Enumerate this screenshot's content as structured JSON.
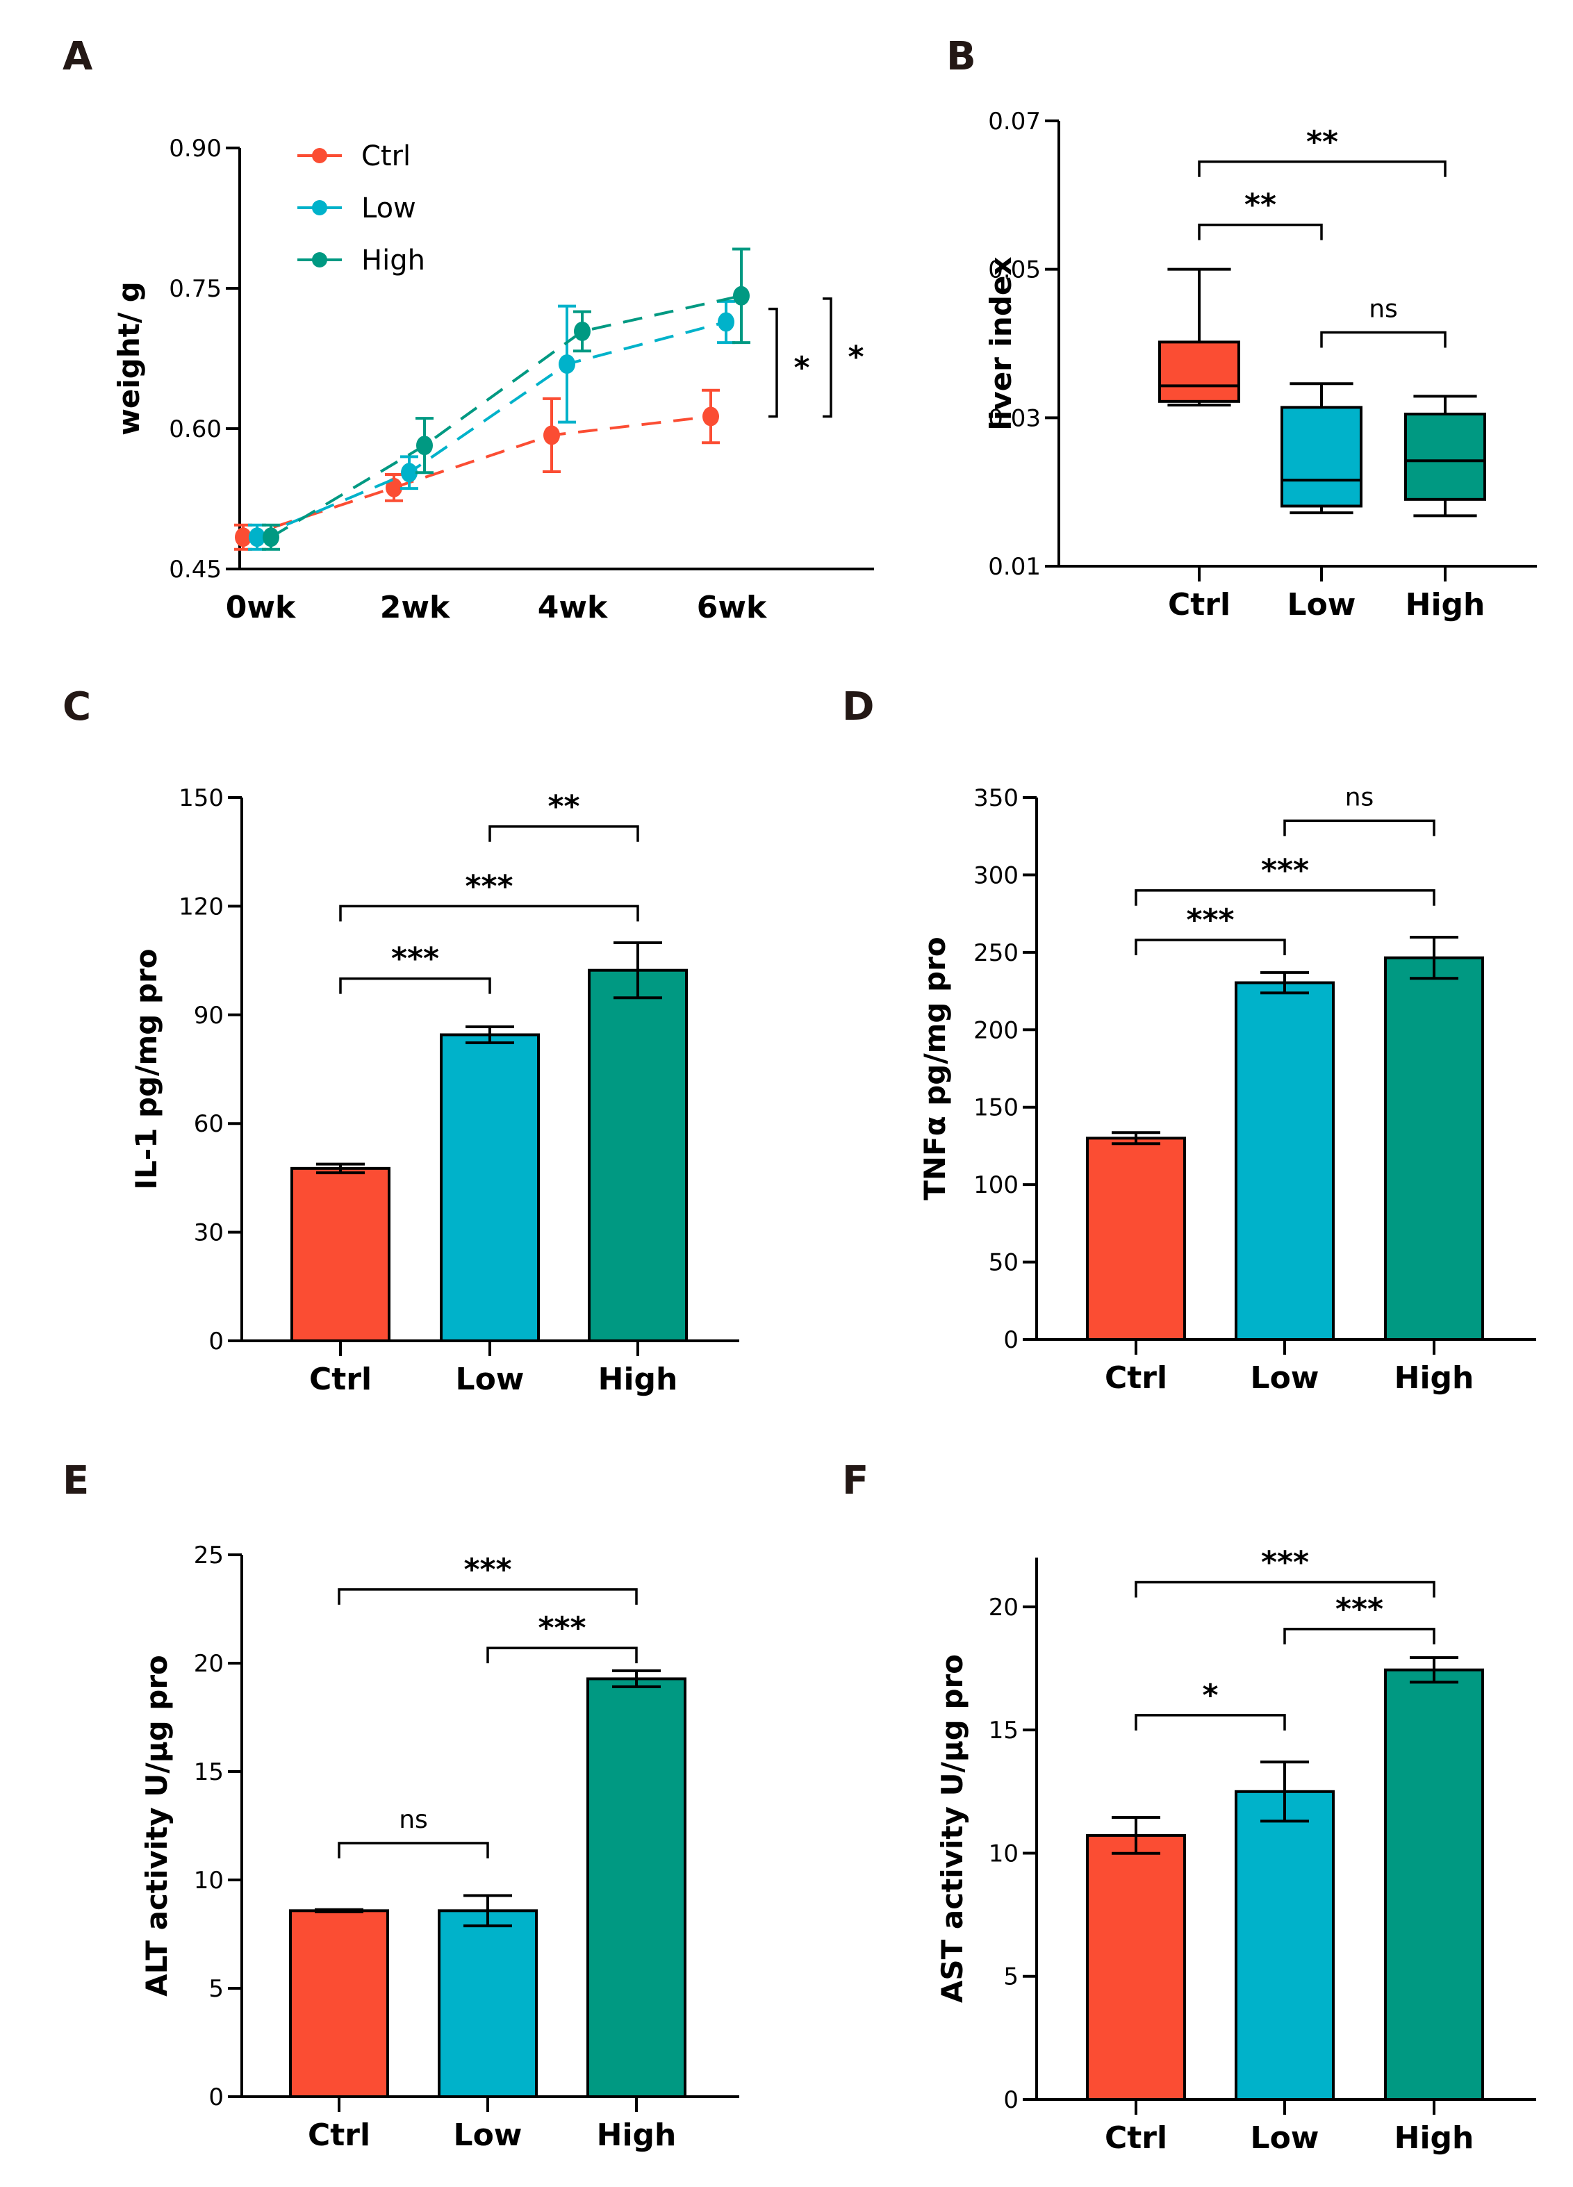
{
  "figure": {
    "colors": {
      "Ctrl": "#FB4D33",
      "Low": "#00B2CA",
      "High": "#009982",
      "axis": "#000000"
    }
  },
  "chart_data": [
    {
      "id": "A",
      "panel_label": "A",
      "type": "line",
      "title": "",
      "xlabel": "",
      "ylabel": "weight/ g",
      "categories": [
        "0wk",
        "2wk",
        "4wk",
        "6wk"
      ],
      "yticks": [
        "0.45",
        "0.60",
        "0.75",
        "0.90"
      ],
      "ylim": [
        0.45,
        0.9
      ],
      "legend": {
        "placement": "top-left",
        "entries": [
          "Ctrl",
          "Low",
          "High"
        ]
      },
      "series": [
        {
          "name": "Ctrl",
          "values": [
            0.484,
            0.537,
            0.593,
            0.613
          ],
          "errors": [
            0.013,
            0.014,
            0.039,
            0.028
          ]
        },
        {
          "name": "Low",
          "values": [
            0.484,
            0.553,
            0.669,
            0.714
          ],
          "errors": [
            0.013,
            0.017,
            0.062,
            0.022
          ]
        },
        {
          "name": "High",
          "values": [
            0.484,
            0.582,
            0.704,
            0.742
          ],
          "errors": [
            0.013,
            0.029,
            0.021,
            0.05
          ]
        }
      ],
      "line_style": "dashed trend",
      "annotations": [
        {
          "between": [
            "Ctrl",
            "Low"
          ],
          "at": "6wk",
          "label": "*"
        },
        {
          "between": [
            "Ctrl",
            "High"
          ],
          "at": "6wk",
          "label": "*"
        }
      ]
    },
    {
      "id": "B",
      "panel_label": "B",
      "type": "box",
      "xlabel": "",
      "ylabel": "liver index",
      "categories": [
        "Ctrl",
        "Low",
        "High"
      ],
      "yticks": [
        "0.01",
        "0.03",
        "0.05",
        "0.07"
      ],
      "ylim": [
        0.01,
        0.07
      ],
      "boxes": [
        {
          "name": "Ctrl",
          "min": 0.0317,
          "q1": 0.0322,
          "median": 0.0343,
          "q3": 0.0402,
          "max": 0.05
        },
        {
          "name": "Low",
          "min": 0.0172,
          "q1": 0.0181,
          "median": 0.0216,
          "q3": 0.0314,
          "max": 0.0346
        },
        {
          "name": "High",
          "min": 0.0168,
          "q1": 0.019,
          "median": 0.0242,
          "q3": 0.0305,
          "max": 0.0329
        }
      ],
      "comparisons": [
        {
          "from": 0,
          "to": 2,
          "label": "**",
          "y": 0.0645
        },
        {
          "from": 0,
          "to": 1,
          "label": "**",
          "y": 0.056
        },
        {
          "from": 1,
          "to": 2,
          "label": "ns",
          "y": 0.0415
        }
      ]
    },
    {
      "id": "C",
      "panel_label": "C",
      "type": "bar",
      "xlabel": "",
      "ylabel": "IL-1   pg/mg pro",
      "categories": [
        "Ctrl",
        "Low",
        "High"
      ],
      "yticks": [
        "0",
        "30",
        "60",
        "90",
        "120",
        "150"
      ],
      "ylim": [
        0,
        150
      ],
      "values": [
        47.6,
        84.5,
        102.3
      ],
      "errors": [
        1.2,
        2.2,
        7.6
      ],
      "comparisons": [
        {
          "from": 1,
          "to": 2,
          "label": "**",
          "y": 142
        },
        {
          "from": 0,
          "to": 2,
          "label": "***",
          "y": 120
        },
        {
          "from": 0,
          "to": 1,
          "label": "***",
          "y": 100
        }
      ]
    },
    {
      "id": "D",
      "panel_label": "D",
      "type": "bar",
      "xlabel": "",
      "ylabel": "TNFα   pg/mg pro",
      "categories": [
        "Ctrl",
        "Low",
        "High"
      ],
      "yticks": [
        "0",
        "50",
        "100",
        "150",
        "200",
        "250",
        "300",
        "350"
      ],
      "ylim": [
        0,
        350
      ],
      "values": [
        130,
        230.4,
        246.5
      ],
      "errors": [
        3.6,
        6.6,
        13.3
      ],
      "comparisons": [
        {
          "from": 1,
          "to": 2,
          "label": "ns",
          "y": 335
        },
        {
          "from": 0,
          "to": 2,
          "label": "***",
          "y": 290
        },
        {
          "from": 0,
          "to": 1,
          "label": "***",
          "y": 258
        }
      ]
    },
    {
      "id": "E",
      "panel_label": "E",
      "type": "bar",
      "xlabel": "",
      "ylabel": "ALT activity   U/μg pro",
      "categories": [
        "Ctrl",
        "Low",
        "High"
      ],
      "yticks": [
        "0",
        "5",
        "10",
        "15",
        "20",
        "25"
      ],
      "ylim": [
        0,
        25
      ],
      "values": [
        8.58,
        8.58,
        19.28
      ],
      "errors": [
        0.05,
        0.7,
        0.37
      ],
      "comparisons": [
        {
          "from": 0,
          "to": 2,
          "label": "***",
          "y": 23.4
        },
        {
          "from": 1,
          "to": 2,
          "label": "***",
          "y": 20.7
        },
        {
          "from": 0,
          "to": 1,
          "label": "ns",
          "y": 11.7
        }
      ]
    },
    {
      "id": "F",
      "panel_label": "F",
      "type": "bar",
      "xlabel": "",
      "ylabel": "AST activity   U/μg pro",
      "categories": [
        "Ctrl",
        "Low",
        "High"
      ],
      "yticks": [
        "0",
        "5",
        "10",
        "15",
        "20"
      ],
      "ylim": [
        0,
        22
      ],
      "values": [
        10.72,
        12.5,
        17.44
      ],
      "errors": [
        0.73,
        1.2,
        0.5
      ],
      "comparisons": [
        {
          "from": 0,
          "to": 2,
          "label": "***",
          "y": 21.0
        },
        {
          "from": 1,
          "to": 2,
          "label": "***",
          "y": 19.1
        },
        {
          "from": 0,
          "to": 1,
          "label": "*",
          "y": 15.6
        }
      ]
    }
  ]
}
